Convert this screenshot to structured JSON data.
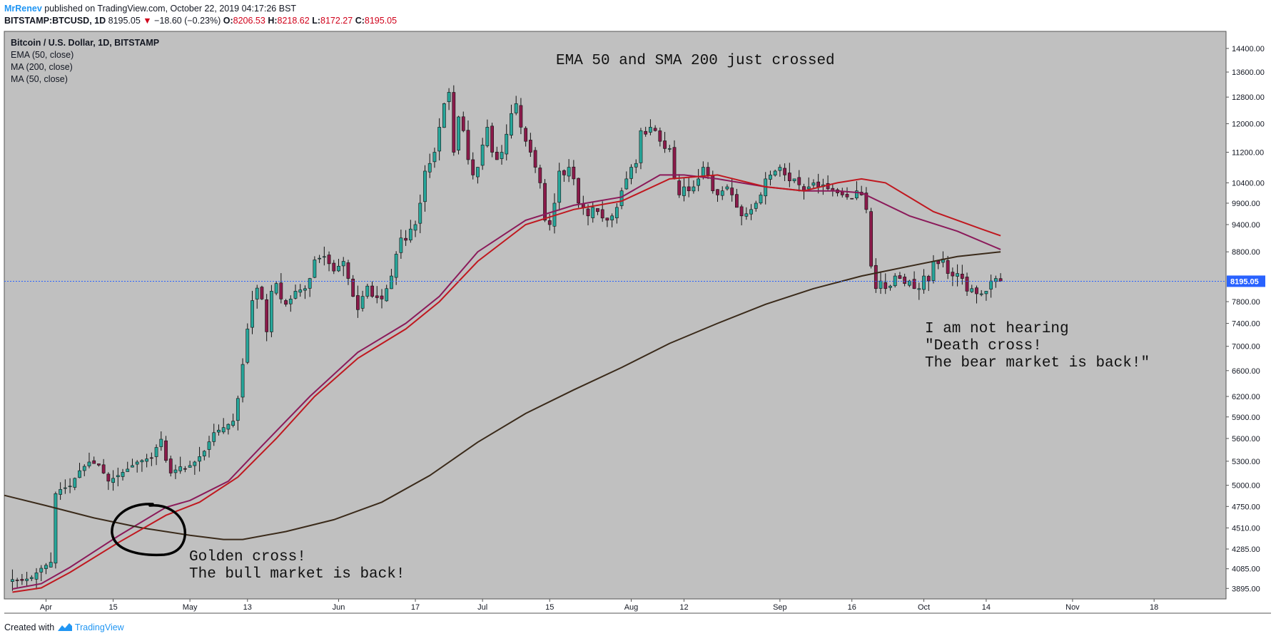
{
  "header": {
    "author": "MrRenev",
    "published_text": " published on TradingView.com, October 22, 2019 04:17:26 BST",
    "symbol": "BITSTAMP:BTCUSD, 1D",
    "last": "8195.05",
    "change": "−18.60 (−0.23%)",
    "open_label": "O:",
    "open": "8206.53",
    "high_label": "H:",
    "high": "8218.62",
    "low_label": "L:",
    "low": "8172.27",
    "close_label": "C:",
    "close": "8195.05"
  },
  "legend": {
    "title": "Bitcoin / U.S. Dollar, 1D, BITSTAMP",
    "ema50": "EMA (50, close)",
    "ma200": "MA (200, close)",
    "ma50": "MA (50, close)"
  },
  "footer": {
    "created_with": "Created with",
    "brand": "TradingView"
  },
  "colors": {
    "plot_bg": "#c0c0c0",
    "up": "#26a69a",
    "down": "#8b1a4a",
    "ema50": "#8b1a5a",
    "ma200": "#3a2a1a",
    "ma50": "#c0181f",
    "price_line": "#2962ff",
    "price_tag": "#2962ff"
  },
  "chart_data": {
    "type": "candlestick",
    "title": "Bitcoin / U.S. Dollar, 1D, BITSTAMP",
    "y_scale": "log",
    "ylim": [
      3850,
      14700
    ],
    "y_ticks": [
      14400,
      13600,
      12800,
      12000,
      11200,
      10400,
      9900,
      9400,
      8800,
      7800,
      7400,
      7000,
      6600,
      6200,
      5900,
      5600,
      5300,
      5000,
      4750,
      4510,
      4285,
      4085,
      3895
    ],
    "y_tick_labels": [
      "14400.00",
      "13600.00",
      "12800.00",
      "12000.00",
      "11200.00",
      "10400.00",
      "9900.00",
      "9400.00",
      "8800.00",
      "7800.00",
      "7400.00",
      "7000.00",
      "6600.00",
      "6200.00",
      "5900.00",
      "5600.00",
      "5300.00",
      "5000.00",
      "4750.00",
      "4510.00",
      "4285.00",
      "4085.00",
      "3895.00"
    ],
    "x_ticks": [
      {
        "label": "Apr",
        "day": 0
      },
      {
        "label": "15",
        "day": 14
      },
      {
        "label": "May",
        "day": 30
      },
      {
        "label": "13",
        "day": 42
      },
      {
        "label": "Jun",
        "day": 61
      },
      {
        "label": "17",
        "day": 77
      },
      {
        "label": "Jul",
        "day": 91
      },
      {
        "label": "15",
        "day": 105
      },
      {
        "label": "Aug",
        "day": 122
      },
      {
        "label": "12",
        "day": 133
      },
      {
        "label": "Sep",
        "day": 153
      },
      {
        "label": "16",
        "day": 168
      },
      {
        "label": "Oct",
        "day": 183
      },
      {
        "label": "14",
        "day": 196
      },
      {
        "label": "Nov",
        "day": 214
      },
      {
        "label": "18",
        "day": 231
      }
    ],
    "day_range": [
      -8.7,
      246
    ],
    "current_price": 8195.05,
    "current_price_label": "8195.05",
    "close_path": [
      [
        -7,
        3980
      ],
      [
        -5,
        3970
      ],
      [
        -3,
        4000
      ],
      [
        -1,
        4090
      ],
      [
        0,
        4120
      ],
      [
        1,
        4150
      ],
      [
        2,
        4900
      ],
      [
        3,
        4950
      ],
      [
        5,
        4990
      ],
      [
        7,
        5180
      ],
      [
        9,
        5290
      ],
      [
        11,
        5250
      ],
      [
        13,
        5050
      ],
      [
        15,
        5120
      ],
      [
        17,
        5200
      ],
      [
        19,
        5290
      ],
      [
        21,
        5330
      ],
      [
        22,
        5340
      ],
      [
        23,
        5480
      ],
      [
        24,
        5590
      ],
      [
        25,
        5310
      ],
      [
        26,
        5150
      ],
      [
        27,
        5190
      ],
      [
        28,
        5230
      ],
      [
        29,
        5200
      ],
      [
        31,
        5290
      ],
      [
        33,
        5430
      ],
      [
        35,
        5680
      ],
      [
        37,
        5750
      ],
      [
        39,
        5840
      ],
      [
        40,
        6170
      ],
      [
        41,
        6700
      ],
      [
        42,
        7300
      ],
      [
        43,
        7820
      ],
      [
        44,
        8060
      ],
      [
        45,
        7850
      ],
      [
        46,
        7250
      ],
      [
        47,
        8000
      ],
      [
        48,
        8150
      ],
      [
        49,
        7850
      ],
      [
        50,
        7750
      ],
      [
        51,
        7850
      ],
      [
        52,
        8000
      ],
      [
        54,
        8050
      ],
      [
        55,
        8250
      ],
      [
        56,
        8630
      ],
      [
        58,
        8700
      ],
      [
        60,
        8400
      ],
      [
        62,
        8600
      ],
      [
        63,
        8250
      ],
      [
        64,
        7900
      ],
      [
        65,
        7650
      ],
      [
        66,
        7900
      ],
      [
        67,
        8100
      ],
      [
        68,
        7900
      ],
      [
        70,
        7850
      ],
      [
        71,
        8050
      ],
      [
        72,
        8300
      ],
      [
        73,
        8750
      ],
      [
        74,
        9100
      ],
      [
        75,
        9050
      ],
      [
        76,
        9300
      ],
      [
        77,
        9400
      ],
      [
        78,
        9900
      ],
      [
        79,
        10700
      ],
      [
        80,
        10900
      ],
      [
        81,
        11200
      ],
      [
        82,
        11900
      ],
      [
        83,
        12600
      ],
      [
        84,
        12950
      ],
      [
        85,
        11200
      ],
      [
        86,
        12200
      ],
      [
        87,
        11800
      ],
      [
        88,
        11000
      ],
      [
        89,
        10600
      ],
      [
        90,
        10800
      ],
      [
        91,
        11400
      ],
      [
        92,
        11900
      ],
      [
        93,
        11200
      ],
      [
        94,
        11000
      ],
      [
        95,
        11200
      ],
      [
        96,
        11700
      ],
      [
        97,
        12300
      ],
      [
        98,
        12600
      ],
      [
        99,
        11900
      ],
      [
        100,
        11500
      ],
      [
        101,
        11200
      ],
      [
        102,
        10800
      ],
      [
        103,
        10400
      ],
      [
        104,
        9500
      ],
      [
        105,
        9400
      ],
      [
        106,
        9900
      ],
      [
        107,
        10700
      ],
      [
        108,
        10600
      ],
      [
        109,
        10800
      ],
      [
        110,
        10500
      ],
      [
        111,
        9900
      ],
      [
        112,
        9800
      ],
      [
        113,
        9600
      ],
      [
        114,
        9800
      ],
      [
        115,
        9700
      ],
      [
        116,
        9550
      ],
      [
        117,
        9500
      ],
      [
        118,
        9600
      ],
      [
        119,
        9800
      ],
      [
        120,
        10200
      ],
      [
        121,
        10500
      ],
      [
        122,
        10800
      ],
      [
        123,
        10900
      ],
      [
        124,
        11800
      ],
      [
        125,
        11700
      ],
      [
        126,
        11900
      ],
      [
        127,
        11800
      ],
      [
        128,
        11500
      ],
      [
        129,
        11300
      ],
      [
        130,
        11300
      ],
      [
        131,
        10500
      ],
      [
        132,
        10100
      ],
      [
        133,
        10300
      ],
      [
        134,
        10200
      ],
      [
        135,
        10300
      ],
      [
        136,
        10500
      ],
      [
        137,
        10800
      ],
      [
        138,
        10600
      ],
      [
        139,
        10200
      ],
      [
        140,
        10100
      ],
      [
        141,
        10200
      ],
      [
        142,
        10300
      ],
      [
        143,
        10100
      ],
      [
        144,
        9800
      ],
      [
        145,
        9600
      ],
      [
        146,
        9650
      ],
      [
        147,
        9750
      ],
      [
        148,
        9900
      ],
      [
        149,
        10100
      ],
      [
        150,
        10500
      ],
      [
        151,
        10600
      ],
      [
        152,
        10700
      ],
      [
        153,
        10800
      ],
      [
        154,
        10600
      ],
      [
        155,
        10450
      ],
      [
        156,
        10500
      ],
      [
        157,
        10350
      ],
      [
        158,
        10200
      ],
      [
        159,
        10300
      ],
      [
        160,
        10400
      ],
      [
        161,
        10300
      ],
      [
        162,
        10350
      ],
      [
        163,
        10250
      ],
      [
        164,
        10200
      ],
      [
        165,
        10150
      ],
      [
        166,
        10100
      ],
      [
        167,
        10050
      ],
      [
        168,
        10000
      ],
      [
        169,
        10200
      ],
      [
        170,
        10100
      ],
      [
        171,
        9750
      ],
      [
        172,
        8500
      ],
      [
        173,
        8050
      ],
      [
        174,
        8200
      ],
      [
        175,
        8050
      ],
      [
        176,
        8100
      ],
      [
        177,
        8300
      ],
      [
        178,
        8250
      ],
      [
        179,
        8150
      ],
      [
        180,
        8200
      ],
      [
        181,
        8050
      ],
      [
        182,
        8050
      ],
      [
        183,
        8300
      ],
      [
        184,
        8200
      ],
      [
        185,
        8600
      ],
      [
        186,
        8550
      ],
      [
        187,
        8650
      ],
      [
        188,
        8350
      ],
      [
        189,
        8300
      ],
      [
        190,
        8350
      ],
      [
        191,
        8250
      ],
      [
        192,
        8000
      ],
      [
        193,
        8050
      ],
      [
        194,
        7950
      ],
      [
        195,
        7950
      ],
      [
        196,
        8000
      ],
      [
        197,
        8200
      ],
      [
        198,
        8250
      ],
      [
        199,
        8195
      ]
    ],
    "series": [
      {
        "name": "EMA (50, close)",
        "points": [
          [
            -7,
            3890
          ],
          [
            -1,
            3940
          ],
          [
            5,
            4100
          ],
          [
            15,
            4420
          ],
          [
            25,
            4740
          ],
          [
            30,
            4820
          ],
          [
            38,
            5050
          ],
          [
            45,
            5500
          ],
          [
            55,
            6200
          ],
          [
            65,
            6900
          ],
          [
            75,
            7400
          ],
          [
            82,
            7900
          ],
          [
            90,
            8800
          ],
          [
            100,
            9500
          ],
          [
            110,
            9850
          ],
          [
            120,
            10050
          ],
          [
            128,
            10600
          ],
          [
            133,
            10600
          ],
          [
            140,
            10500
          ],
          [
            150,
            10300
          ],
          [
            158,
            10200
          ],
          [
            165,
            10200
          ],
          [
            170,
            10150
          ],
          [
            180,
            9600
          ],
          [
            190,
            9250
          ],
          [
            199,
            8850
          ]
        ]
      },
      {
        "name": "MA (200, close)",
        "points": [
          [
            -8.7,
            4880
          ],
          [
            0,
            4760
          ],
          [
            10,
            4620
          ],
          [
            20,
            4510
          ],
          [
            30,
            4430
          ],
          [
            37,
            4385
          ],
          [
            41,
            4385
          ],
          [
            50,
            4470
          ],
          [
            60,
            4600
          ],
          [
            70,
            4800
          ],
          [
            80,
            5120
          ],
          [
            90,
            5550
          ],
          [
            100,
            5950
          ],
          [
            110,
            6300
          ],
          [
            120,
            6650
          ],
          [
            130,
            7050
          ],
          [
            140,
            7400
          ],
          [
            150,
            7750
          ],
          [
            160,
            8050
          ],
          [
            170,
            8300
          ],
          [
            180,
            8500
          ],
          [
            190,
            8700
          ],
          [
            199,
            8800
          ]
        ]
      },
      {
        "name": "MA (50, close)",
        "points": [
          [
            -7,
            3860
          ],
          [
            -1,
            3900
          ],
          [
            5,
            4050
          ],
          [
            15,
            4350
          ],
          [
            25,
            4650
          ],
          [
            32,
            4800
          ],
          [
            40,
            5100
          ],
          [
            48,
            5600
          ],
          [
            56,
            6200
          ],
          [
            65,
            6800
          ],
          [
            75,
            7300
          ],
          [
            82,
            7800
          ],
          [
            90,
            8600
          ],
          [
            100,
            9400
          ],
          [
            110,
            9750
          ],
          [
            120,
            9950
          ],
          [
            130,
            10500
          ],
          [
            140,
            10600
          ],
          [
            150,
            10300
          ],
          [
            158,
            10200
          ],
          [
            165,
            10400
          ],
          [
            170,
            10500
          ],
          [
            175,
            10400
          ],
          [
            185,
            9700
          ],
          [
            195,
            9300
          ],
          [
            199,
            9150
          ]
        ]
      }
    ],
    "annotations": [
      {
        "text": "EMA 50 and SMA 200 just crossed"
      },
      {
        "text": "Golden cross!"
      },
      {
        "text": "The bull market is back!"
      },
      {
        "text": "I am not hearing"
      },
      {
        "text": "\"Death cross!"
      },
      {
        "text": "The bear market is back!\""
      }
    ]
  }
}
